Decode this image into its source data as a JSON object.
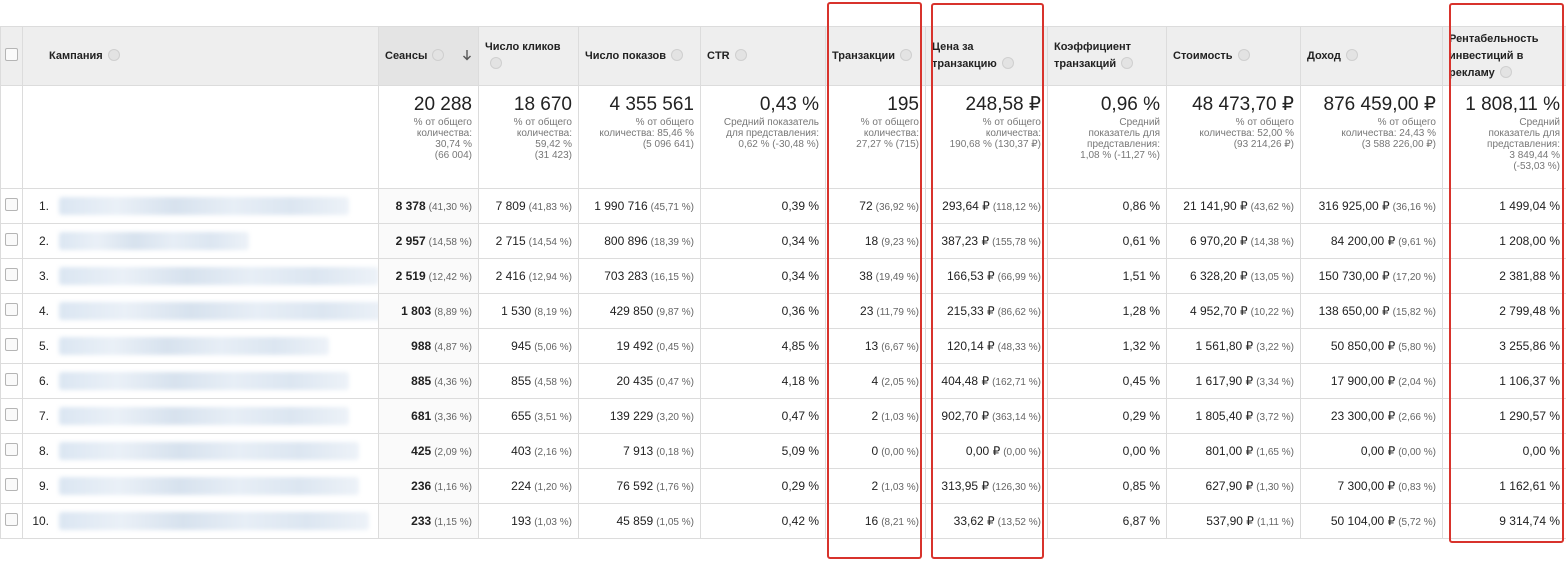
{
  "table": {
    "columns": [
      "Кампания",
      "Сеансы",
      "Число кликов",
      "Число показов",
      "CTR",
      "Транзакции",
      "Цена за транзакцию",
      "Коэффициент транзакций",
      "Стоимость",
      "Доход",
      "Рентабельность инвестиций в рекламу"
    ],
    "totals": [
      {
        "value": "20 288",
        "note": [
          "% от общего",
          "количества:",
          "30,74 %",
          "(66 004)"
        ]
      },
      {
        "value": "18 670",
        "note": [
          "% от общего",
          "количества:",
          "59,42 %",
          "(31 423)"
        ]
      },
      {
        "value": "4 355 561",
        "note": [
          "% от общего",
          "количества: 85,46 %",
          "(5 096 641)"
        ]
      },
      {
        "value": "0,43 %",
        "note": [
          "Средний показатель",
          "для представления:",
          "0,62 % (-30,48 %)"
        ]
      },
      {
        "value": "195",
        "note": [
          "% от общего",
          "количества:",
          "27,27 % (715)"
        ]
      },
      {
        "value": "248,58 ₽",
        "note": [
          "% от общего",
          "количества:",
          "190,68 % (130,37 ₽)"
        ]
      },
      {
        "value": "0,96 %",
        "note": [
          "Средний",
          "показатель для",
          "представления:",
          "1,08 % (-11,27 %)"
        ]
      },
      {
        "value": "48 473,70 ₽",
        "note": [
          "% от общего",
          "количества: 52,00 %",
          "(93 214,26 ₽)"
        ]
      },
      {
        "value": "876 459,00 ₽",
        "note": [
          "% от общего",
          "количества: 24,43 %",
          "(3 588 226,00 ₽)"
        ]
      },
      {
        "value": "1 808,11 %",
        "note": [
          "Средний",
          "показатель для",
          "представления:",
          "3 849,44 %",
          "(-53,03 %)"
        ]
      }
    ],
    "rows": [
      {
        "num": "1.",
        "cells": [
          {
            "value": "8 378",
            "pct": "(41,30 %)"
          },
          {
            "value": "7 809",
            "pct": "(41,83 %)"
          },
          {
            "value": "1 990 716",
            "pct": "(45,71 %)"
          },
          {
            "value": "0,39 %"
          },
          {
            "value": "72",
            "pct": "(36,92 %)"
          },
          {
            "value": "293,64 ₽",
            "pct": "(118,12 %)"
          },
          {
            "value": "0,86 %"
          },
          {
            "value": "21 141,90 ₽",
            "pct": "(43,62 %)"
          },
          {
            "value": "316 925,00 ₽",
            "pct": "(36,16 %)"
          },
          {
            "value": "1 499,04 %"
          }
        ]
      },
      {
        "num": "2.",
        "cells": [
          {
            "value": "2 957",
            "pct": "(14,58 %)"
          },
          {
            "value": "2 715",
            "pct": "(14,54 %)"
          },
          {
            "value": "800 896",
            "pct": "(18,39 %)"
          },
          {
            "value": "0,34 %"
          },
          {
            "value": "18",
            "pct": "(9,23 %)"
          },
          {
            "value": "387,23 ₽",
            "pct": "(155,78 %)"
          },
          {
            "value": "0,61 %"
          },
          {
            "value": "6 970,20 ₽",
            "pct": "(14,38 %)"
          },
          {
            "value": "84 200,00 ₽",
            "pct": "(9,61 %)"
          },
          {
            "value": "1 208,00 %"
          }
        ]
      },
      {
        "num": "3.",
        "cells": [
          {
            "value": "2 519",
            "pct": "(12,42 %)"
          },
          {
            "value": "2 416",
            "pct": "(12,94 %)"
          },
          {
            "value": "703 283",
            "pct": "(16,15 %)"
          },
          {
            "value": "0,34 %"
          },
          {
            "value": "38",
            "pct": "(19,49 %)"
          },
          {
            "value": "166,53 ₽",
            "pct": "(66,99 %)"
          },
          {
            "value": "1,51 %"
          },
          {
            "value": "6 328,20 ₽",
            "pct": "(13,05 %)"
          },
          {
            "value": "150 730,00 ₽",
            "pct": "(17,20 %)"
          },
          {
            "value": "2 381,88 %"
          }
        ]
      },
      {
        "num": "4.",
        "cells": [
          {
            "value": "1 803",
            "pct": "(8,89 %)"
          },
          {
            "value": "1 530",
            "pct": "(8,19 %)"
          },
          {
            "value": "429 850",
            "pct": "(9,87 %)"
          },
          {
            "value": "0,36 %"
          },
          {
            "value": "23",
            "pct": "(11,79 %)"
          },
          {
            "value": "215,33 ₽",
            "pct": "(86,62 %)"
          },
          {
            "value": "1,28 %"
          },
          {
            "value": "4 952,70 ₽",
            "pct": "(10,22 %)"
          },
          {
            "value": "138 650,00 ₽",
            "pct": "(15,82 %)"
          },
          {
            "value": "2 799,48 %"
          }
        ]
      },
      {
        "num": "5.",
        "cells": [
          {
            "value": "988",
            "pct": "(4,87 %)"
          },
          {
            "value": "945",
            "pct": "(5,06 %)"
          },
          {
            "value": "19 492",
            "pct": "(0,45 %)"
          },
          {
            "value": "4,85 %"
          },
          {
            "value": "13",
            "pct": "(6,67 %)"
          },
          {
            "value": "120,14 ₽",
            "pct": "(48,33 %)"
          },
          {
            "value": "1,32 %"
          },
          {
            "value": "1 561,80 ₽",
            "pct": "(3,22 %)"
          },
          {
            "value": "50 850,00 ₽",
            "pct": "(5,80 %)"
          },
          {
            "value": "3 255,86 %"
          }
        ]
      },
      {
        "num": "6.",
        "cells": [
          {
            "value": "885",
            "pct": "(4,36 %)"
          },
          {
            "value": "855",
            "pct": "(4,58 %)"
          },
          {
            "value": "20 435",
            "pct": "(0,47 %)"
          },
          {
            "value": "4,18 %"
          },
          {
            "value": "4",
            "pct": "(2,05 %)"
          },
          {
            "value": "404,48 ₽",
            "pct": "(162,71 %)"
          },
          {
            "value": "0,45 %"
          },
          {
            "value": "1 617,90 ₽",
            "pct": "(3,34 %)"
          },
          {
            "value": "17 900,00 ₽",
            "pct": "(2,04 %)"
          },
          {
            "value": "1 106,37 %"
          }
        ]
      },
      {
        "num": "7.",
        "cells": [
          {
            "value": "681",
            "pct": "(3,36 %)"
          },
          {
            "value": "655",
            "pct": "(3,51 %)"
          },
          {
            "value": "139 229",
            "pct": "(3,20 %)"
          },
          {
            "value": "0,47 %"
          },
          {
            "value": "2",
            "pct": "(1,03 %)"
          },
          {
            "value": "902,70 ₽",
            "pct": "(363,14 %)"
          },
          {
            "value": "0,29 %"
          },
          {
            "value": "1 805,40 ₽",
            "pct": "(3,72 %)"
          },
          {
            "value": "23 300,00 ₽",
            "pct": "(2,66 %)"
          },
          {
            "value": "1 290,57 %"
          }
        ]
      },
      {
        "num": "8.",
        "cells": [
          {
            "value": "425",
            "pct": "(2,09 %)"
          },
          {
            "value": "403",
            "pct": "(2,16 %)"
          },
          {
            "value": "7 913",
            "pct": "(0,18 %)"
          },
          {
            "value": "5,09 %"
          },
          {
            "value": "0",
            "pct": "(0,00 %)"
          },
          {
            "value": "0,00 ₽",
            "pct": "(0,00 %)"
          },
          {
            "value": "0,00 %"
          },
          {
            "value": "801,00 ₽",
            "pct": "(1,65 %)"
          },
          {
            "value": "0,00 ₽",
            "pct": "(0,00 %)"
          },
          {
            "value": "0,00 %"
          }
        ]
      },
      {
        "num": "9.",
        "cells": [
          {
            "value": "236",
            "pct": "(1,16 %)"
          },
          {
            "value": "224",
            "pct": "(1,20 %)"
          },
          {
            "value": "76 592",
            "pct": "(1,76 %)"
          },
          {
            "value": "0,29 %"
          },
          {
            "value": "2",
            "pct": "(1,03 %)"
          },
          {
            "value": "313,95 ₽",
            "pct": "(126,30 %)"
          },
          {
            "value": "0,85 %"
          },
          {
            "value": "627,90 ₽",
            "pct": "(1,30 %)"
          },
          {
            "value": "7 300,00 ₽",
            "pct": "(0,83 %)"
          },
          {
            "value": "1 162,61 %"
          }
        ]
      },
      {
        "num": "10.",
        "cells": [
          {
            "value": "233",
            "pct": "(1,15 %)"
          },
          {
            "value": "193",
            "pct": "(1,03 %)"
          },
          {
            "value": "45 859",
            "pct": "(1,05 %)"
          },
          {
            "value": "0,42 %"
          },
          {
            "value": "16",
            "pct": "(8,21 %)"
          },
          {
            "value": "33,62 ₽",
            "pct": "(13,52 %)"
          },
          {
            "value": "6,87 %"
          },
          {
            "value": "537,90 ₽",
            "pct": "(1,11 %)"
          },
          {
            "value": "50 104,00 ₽",
            "pct": "(5,72 %)"
          },
          {
            "value": "9 314,74 %"
          }
        ]
      }
    ]
  }
}
